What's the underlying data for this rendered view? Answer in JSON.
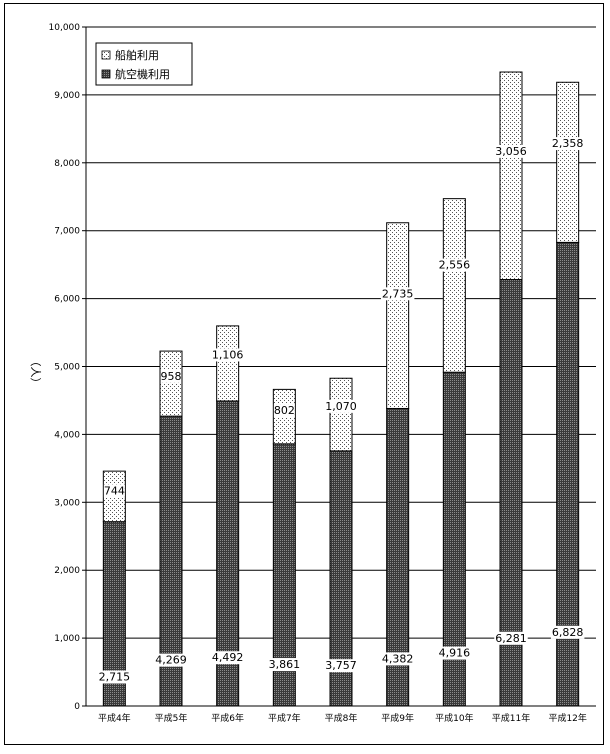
{
  "chart_data": {
    "type": "bar",
    "stacked": true,
    "categories": [
      "平成4年",
      "平成5年",
      "平成6年",
      "平成7年",
      "平成8年",
      "平成9年",
      "平成10年",
      "平成11年",
      "平成12年"
    ],
    "series": [
      {
        "name": "航空機利用",
        "values": [
          2715,
          4269,
          4492,
          3861,
          3757,
          4382,
          4916,
          6281,
          6828
        ],
        "value_labels": [
          "2,715",
          "4,269",
          "4,492",
          "3,861",
          "3,757",
          "4,382",
          "4,916",
          "6,281",
          "6,828"
        ],
        "pattern": "dark-dots"
      },
      {
        "name": "船舶利用",
        "values": [
          744,
          958,
          1106,
          802,
          1070,
          2735,
          2556,
          3056,
          2358
        ],
        "value_labels": [
          "744",
          "958",
          "1,106",
          "802",
          "1,070",
          "2,735",
          "2,556",
          "3,056",
          "2,358"
        ],
        "pattern": "light-dots"
      }
    ],
    "ylabel": "（人）",
    "ylim": [
      0,
      10000
    ],
    "y_ticks": [
      {
        "value": 0,
        "label": "0"
      },
      {
        "value": 1000,
        "label": "1,000"
      },
      {
        "value": 2000,
        "label": "2,000"
      },
      {
        "value": 3000,
        "label": "3,000"
      },
      {
        "value": 4000,
        "label": "4,000"
      },
      {
        "value": 5000,
        "label": "5,000"
      },
      {
        "value": 6000,
        "label": "6,000"
      },
      {
        "value": 7000,
        "label": "7,000"
      },
      {
        "value": 8000,
        "label": "8,000"
      },
      {
        "value": 9000,
        "label": "9,000"
      },
      {
        "value": 10000,
        "label": "10,000"
      }
    ],
    "grid": true,
    "legend_position": "top-left",
    "legend": [
      "船舶利用",
      "航空機利用"
    ]
  }
}
